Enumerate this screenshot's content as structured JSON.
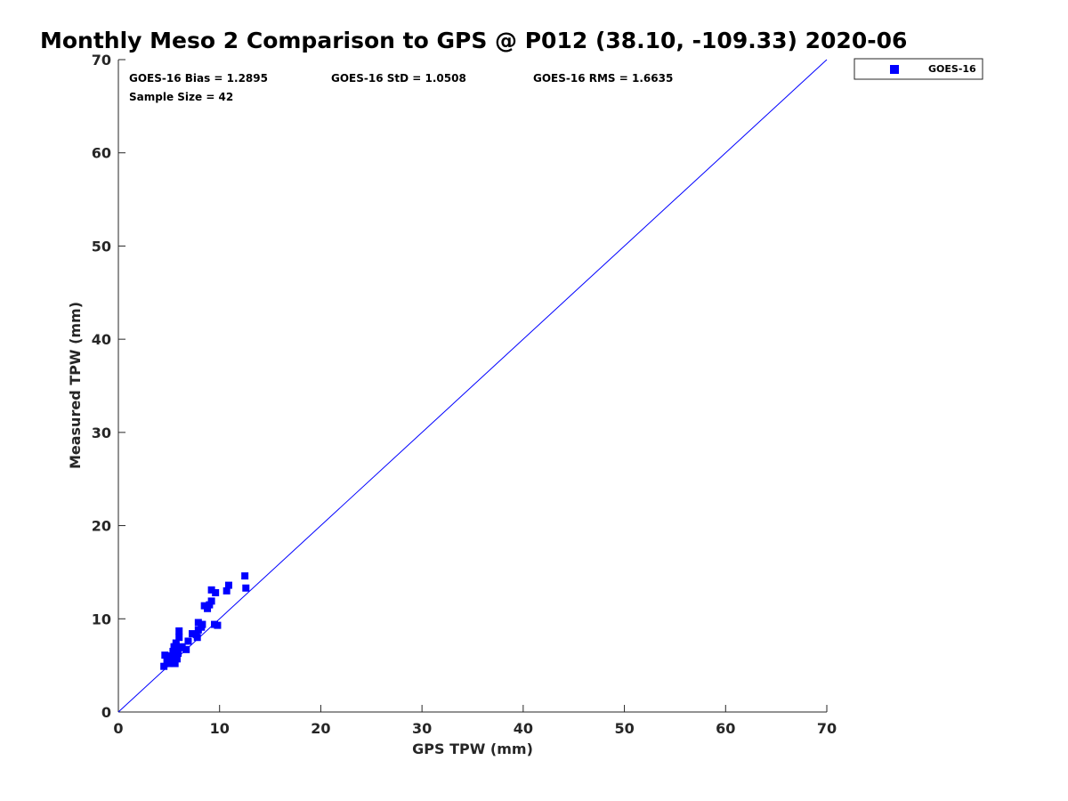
{
  "chart_data": {
    "type": "scatter",
    "title": "Monthly Meso 2 Comparison to GPS @ P012 (38.10, -109.33) 2020-06",
    "xlabel": "GPS TPW (mm)",
    "ylabel": "Measured TPW (mm)",
    "xlim": [
      0,
      70
    ],
    "ylim": [
      0,
      70
    ],
    "xticks": [
      "0",
      "10",
      "20",
      "30",
      "40",
      "50",
      "60",
      "70"
    ],
    "yticks": [
      "0",
      "10",
      "20",
      "30",
      "40",
      "50",
      "60",
      "70"
    ],
    "grid": false,
    "legend_position": "top-right (outside plot)",
    "stats": {
      "bias": "GOES-16 Bias = 1.2895",
      "std": "GOES-16 StD = 1.0508",
      "rms": "GOES-16 RMS = 1.6635",
      "sample_size": "Sample Size = 42"
    },
    "reference_line": {
      "type": "one-to-one",
      "x": [
        0,
        70
      ],
      "y": [
        0,
        70
      ],
      "color": "#0000ff"
    },
    "series": [
      {
        "name": "GOES-16",
        "color": "#0000ff",
        "marker": "square",
        "points": [
          [
            4.5,
            4.9
          ],
          [
            4.6,
            6.1
          ],
          [
            4.8,
            5.5
          ],
          [
            5.0,
            5.2
          ],
          [
            5.1,
            6.0
          ],
          [
            5.3,
            5.4
          ],
          [
            5.4,
            5.8
          ],
          [
            5.5,
            6.1
          ],
          [
            5.6,
            5.2
          ],
          [
            5.6,
            6.6
          ],
          [
            5.7,
            7.1
          ],
          [
            5.7,
            7.4
          ],
          [
            5.8,
            5.7
          ],
          [
            5.9,
            6.3
          ],
          [
            6.0,
            8.0
          ],
          [
            6.0,
            8.7
          ],
          [
            6.2,
            6.9
          ],
          [
            6.7,
            6.7
          ],
          [
            6.9,
            7.6
          ],
          [
            7.3,
            8.4
          ],
          [
            7.7,
            8.3
          ],
          [
            7.8,
            8.0
          ],
          [
            7.9,
            9.6
          ],
          [
            8.2,
            9.1
          ],
          [
            8.3,
            9.4
          ],
          [
            8.5,
            11.4
          ],
          [
            8.8,
            11.1
          ],
          [
            9.0,
            11.5
          ],
          [
            9.2,
            11.9
          ],
          [
            9.2,
            13.1
          ],
          [
            9.5,
            9.4
          ],
          [
            9.6,
            12.8
          ],
          [
            9.8,
            9.3
          ],
          [
            10.7,
            13.0
          ],
          [
            10.9,
            13.6
          ],
          [
            12.5,
            14.6
          ],
          [
            12.6,
            13.3
          ],
          [
            7.9,
            8.8
          ],
          [
            5.5,
            7.0
          ],
          [
            5.0,
            6.0
          ],
          [
            6.3,
            7.0
          ],
          [
            5.4,
            6.5
          ]
        ]
      }
    ]
  }
}
